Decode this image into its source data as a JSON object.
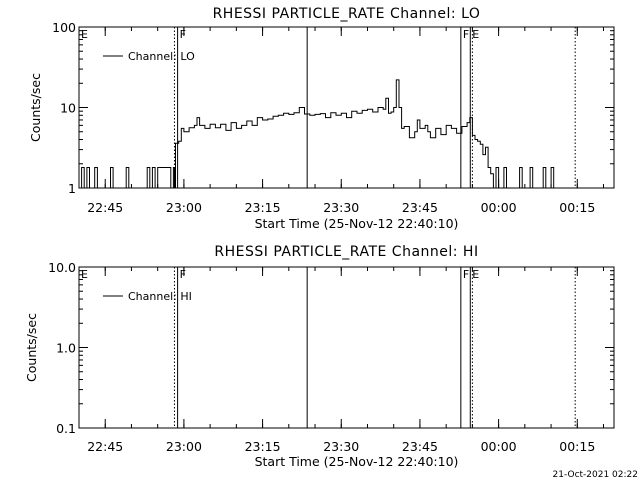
{
  "footer_timestamp": "21-Oct-2021 02:22",
  "chart_data": [
    {
      "type": "line",
      "title": "RHESSI PARTICLE_RATE Channel: LO",
      "xlabel": "Start Time (25-Nov-12 22:40:10)",
      "ylabel": "Counts/sec",
      "y_scale": "log",
      "ylim": [
        1,
        100
      ],
      "ytick_values": [
        1,
        10,
        100
      ],
      "ytick_labels": [
        "1",
        "10",
        "100"
      ],
      "xlim_min": [
        0,
        95
      ],
      "xtick_values": [
        5,
        20,
        35,
        50,
        65,
        80,
        95
      ],
      "xtick_labels": [
        "22:45",
        "23:00",
        "23:15",
        "23:30",
        "23:45",
        "00:00",
        "00:15"
      ],
      "legend": {
        "placement": "top-left",
        "entries": [
          "Channel: LO"
        ]
      },
      "markers": [
        {
          "x": 18.2,
          "style": "dotted",
          "label": ""
        },
        {
          "x": 18.8,
          "style": "solid",
          "label": "F"
        },
        {
          "x": 43.5,
          "style": "solid",
          "label": ""
        },
        {
          "x": 72.8,
          "style": "solid",
          "label": "F"
        },
        {
          "x": 74.6,
          "style": "solid",
          "label": "E"
        },
        {
          "x": 75.0,
          "style": "dotted",
          "label": ""
        },
        {
          "x": 94.6,
          "style": "dotted",
          "label": ""
        }
      ],
      "corner_label": "E",
      "series": [
        {
          "values": [
            [
              0,
              1
            ],
            [
              0.5,
              1.8
            ],
            [
              1,
              1
            ],
            [
              1.5,
              1.8
            ],
            [
              2,
              1
            ],
            [
              3,
              1.8
            ],
            [
              3.5,
              1
            ],
            [
              5,
              1
            ],
            [
              6,
              1.8
            ],
            [
              6.5,
              1
            ],
            [
              8,
              1
            ],
            [
              9,
              1.8
            ],
            [
              9.5,
              1
            ],
            [
              11,
              1
            ],
            [
              12,
              1
            ],
            [
              13,
              1.8
            ],
            [
              13.5,
              1
            ],
            [
              14,
              1.8
            ],
            [
              14.5,
              1
            ],
            [
              15,
              1.8
            ],
            [
              17,
              1.8
            ],
            [
              17.5,
              1.8
            ],
            [
              17.5,
              1
            ],
            [
              18,
              1.8
            ],
            [
              18.2,
              1
            ],
            [
              18.4,
              3.6
            ],
            [
              19,
              3.8
            ],
            [
              19.5,
              5.5
            ],
            [
              20,
              5
            ],
            [
              21,
              5.6
            ],
            [
              22,
              6
            ],
            [
              22.5,
              7.5
            ],
            [
              23,
              6
            ],
            [
              24,
              5.5
            ],
            [
              25,
              6.2
            ],
            [
              26,
              5.6
            ],
            [
              27,
              6.2
            ],
            [
              28,
              5.2
            ],
            [
              29,
              6.5
            ],
            [
              30,
              5.5
            ],
            [
              31,
              6
            ],
            [
              32,
              6.8
            ],
            [
              33,
              6
            ],
            [
              34,
              7.5
            ],
            [
              35,
              7
            ],
            [
              36,
              7.2
            ],
            [
              37,
              7.8
            ],
            [
              38,
              8
            ],
            [
              39,
              8.5
            ],
            [
              40,
              8.2
            ],
            [
              41,
              8.6
            ],
            [
              42,
              10
            ],
            [
              43,
              8.3
            ],
            [
              44,
              8
            ],
            [
              45,
              8.2
            ],
            [
              46,
              8.4
            ],
            [
              47,
              7.5
            ],
            [
              48,
              8.6
            ],
            [
              49,
              8
            ],
            [
              50,
              8.5
            ],
            [
              51,
              7.5
            ],
            [
              52,
              9
            ],
            [
              53,
              8.5
            ],
            [
              54,
              9.2
            ],
            [
              55,
              9.5
            ],
            [
              56,
              8.8
            ],
            [
              57,
              10
            ],
            [
              58,
              9.5
            ],
            [
              58.5,
              13
            ],
            [
              59,
              8.5
            ],
            [
              59.5,
              8.8
            ],
            [
              60,
              10
            ],
            [
              60.5,
              22
            ],
            [
              61,
              10
            ],
            [
              61.5,
              5.5
            ],
            [
              62,
              5.8
            ],
            [
              63,
              4.2
            ],
            [
              64,
              5
            ],
            [
              64.5,
              7
            ],
            [
              65,
              5.5
            ],
            [
              66,
              6
            ],
            [
              66.5,
              5
            ],
            [
              67,
              4.2
            ],
            [
              68,
              5.5
            ],
            [
              69,
              4.6
            ],
            [
              70,
              6
            ],
            [
              71,
              5.5
            ],
            [
              72,
              4.8
            ],
            [
              73,
              5.8
            ],
            [
              74,
              6.5
            ],
            [
              74.5,
              7.5
            ],
            [
              75,
              4.5
            ],
            [
              75.5,
              4
            ],
            [
              76,
              3.8
            ],
            [
              76.5,
              3.5
            ],
            [
              77,
              2.6
            ],
            [
              77.5,
              3.2
            ],
            [
              78,
              1.8
            ],
            [
              78.5,
              1.5
            ],
            [
              79,
              1
            ],
            [
              79.5,
              1.8
            ],
            [
              80,
              1
            ],
            [
              81,
              1.8
            ],
            [
              81.5,
              1
            ],
            [
              83,
              1
            ],
            [
              84,
              1.8
            ],
            [
              84.5,
              1
            ],
            [
              86,
              1.8
            ],
            [
              86.5,
              1
            ],
            [
              88,
              1
            ],
            [
              88.5,
              1.8
            ],
            [
              89,
              1
            ],
            [
              90,
              1.8
            ],
            [
              90.5,
              1
            ],
            [
              95,
              1
            ]
          ]
        }
      ]
    },
    {
      "type": "line",
      "title": "RHESSI PARTICLE_RATE Channel: HI",
      "xlabel": "Start Time (25-Nov-12 22:40:10)",
      "ylabel": "Counts/sec",
      "y_scale": "log",
      "ylim": [
        0.1,
        10
      ],
      "ytick_values": [
        0.1,
        1,
        10
      ],
      "ytick_labels": [
        "0.1",
        "1.0",
        "10.0"
      ],
      "xtick_values": [
        5,
        20,
        35,
        50,
        65,
        80,
        95
      ],
      "xtick_labels": [
        "22:45",
        "23:00",
        "23:15",
        "23:30",
        "23:45",
        "00:00",
        "00:15"
      ],
      "legend": {
        "placement": "top-left",
        "entries": [
          "Channel: HI"
        ]
      },
      "markers": [
        {
          "x": 18.2,
          "style": "dotted",
          "label": ""
        },
        {
          "x": 18.8,
          "style": "solid",
          "label": "F"
        },
        {
          "x": 43.5,
          "style": "solid",
          "label": ""
        },
        {
          "x": 72.8,
          "style": "solid",
          "label": "F"
        },
        {
          "x": 74.6,
          "style": "solid",
          "label": "E"
        },
        {
          "x": 75.0,
          "style": "dotted",
          "label": ""
        },
        {
          "x": 94.6,
          "style": "dotted",
          "label": ""
        }
      ],
      "corner_label": "E",
      "series": [
        {
          "values": []
        }
      ]
    }
  ]
}
